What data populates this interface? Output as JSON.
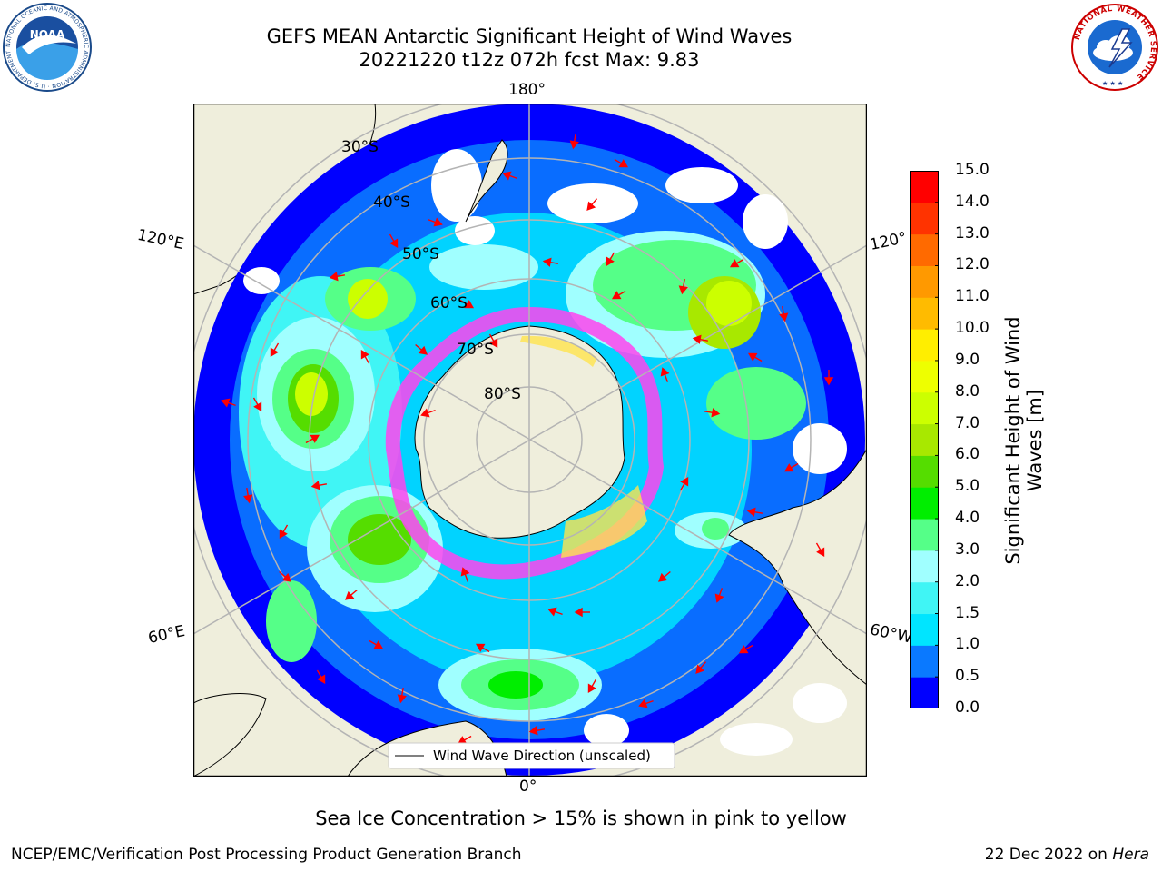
{
  "title": {
    "line1": "GEFS MEAN Antarctic Significant Height of Wind Waves",
    "line2": "20221220 t12z 072h fcst   Max: 9.83"
  },
  "logos": {
    "noaa": {
      "text": "NOAA",
      "ring_text": "NATIONAL OCEANIC AND ATMOSPHERIC ADMINISTRATION · U.S. DEPARTMENT OF COMMERCE"
    },
    "nws": {
      "ring_text": "NATIONAL WEATHER SERVICE"
    }
  },
  "map": {
    "projection": "south-polar-stereographic",
    "longitude_labels": [
      "180°",
      "120°E",
      "120°",
      "60°E",
      "60°W",
      "0°"
    ],
    "latitude_labels": [
      "30°S",
      "40°S",
      "50°S",
      "60°S",
      "70°S",
      "80°S"
    ],
    "legend": "Wind Wave Direction (unscaled)",
    "colors": {
      "land": "#efeedc",
      "arrow": "#ff0000",
      "ice_low": "#ff44ee",
      "ice_high": "#ffe34d",
      "grid": "#b4b4b4"
    }
  },
  "colorbar": {
    "label": "Significant Height of Wind Waves [m]",
    "ticks": [
      "0.0",
      "0.5",
      "1.0",
      "1.5",
      "2.0",
      "3.0",
      "4.0",
      "5.0",
      "6.0",
      "7.0",
      "8.0",
      "9.0",
      "10.0",
      "11.0",
      "12.0",
      "13.0",
      "14.0",
      "15.0"
    ],
    "colors": [
      "#0000ff",
      "#0a79ff",
      "#00e5ff",
      "#40f5f5",
      "#a0ffff",
      "#55ff88",
      "#00ee00",
      "#55dd00",
      "#a8e800",
      "#ccff00",
      "#eeff00",
      "#ffee00",
      "#ffbb00",
      "#ff9900",
      "#ff6a00",
      "#ff3300",
      "#ff0000"
    ]
  },
  "footer": {
    "note": "Sea Ice Concentration > 15% is shown in pink to yellow",
    "credit": "NCEP/EMC/Verification Post Processing Product Generation Branch",
    "date": "22 Dec 2022 on",
    "system": "Hera"
  }
}
